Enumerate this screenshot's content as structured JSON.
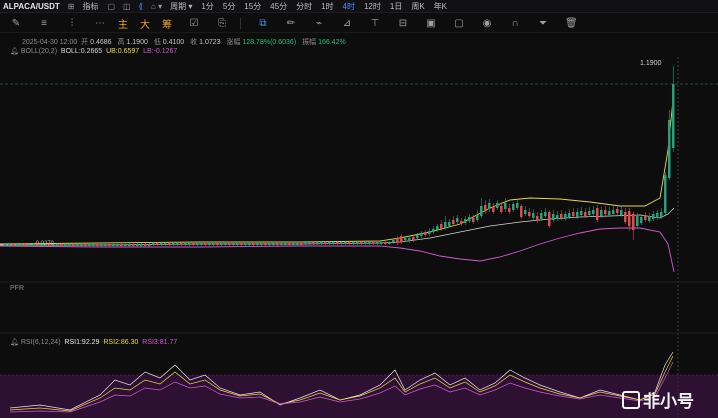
{
  "toolbar": {
    "symbol": "ALPACA/USDT",
    "indicators_label": "指标",
    "period_label": "周期",
    "intervals": [
      "1分",
      "5分",
      "15分",
      "45分",
      "分时",
      "1时",
      "4时",
      "12时",
      "1日",
      "周K",
      "年K"
    ],
    "active_interval": "4时"
  },
  "toolbar2": {
    "main_label": "主",
    "big_label": "大",
    "chip_label": "筹"
  },
  "ohlc": {
    "date": "2025-04-30 12:00",
    "open_label": "开",
    "open": "0.4686",
    "high_label": "高",
    "high": "1.1900",
    "low_label": "低",
    "low": "0.4100",
    "close_label": "收",
    "close": "1.0723",
    "change_label": "涨幅",
    "change": "128.78%(0.6036)",
    "amplitude_label": "振幅",
    "amplitude": "166.42%"
  },
  "boll": {
    "name": "BOLL(20,2)",
    "mid": "BOLL:0.2665",
    "ub": "UB:0.6597",
    "lb": "LB:-0.1267"
  },
  "price_marker": "1.1900",
  "low_marker": "0.0270",
  "pfr_label": "PFR",
  "rsi": {
    "name": "RSI(6,12,24)",
    "rsi1": "RSI1:92.29",
    "rsi2": "RSI2:86.30",
    "rsi3": "RSI3:81.77"
  },
  "watermark": "非小号",
  "colors": {
    "up": "#26a17b",
    "down": "#e04b4b",
    "accent": "#4b8dff",
    "ub": "#e8d84a",
    "lb": "#d45ad3"
  }
}
